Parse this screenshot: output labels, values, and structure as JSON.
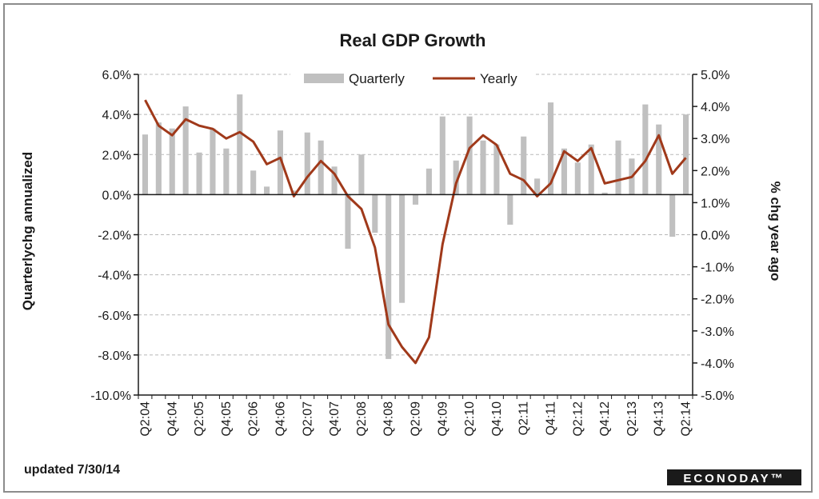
{
  "colors": {
    "bars": "#c0c0c0",
    "line": "#a0391a",
    "grid": "#b8b8b8",
    "axis": "#1a1a1a",
    "logo_bg": "#1a1a1a"
  },
  "footer": {
    "updated": "updated 7/30/14",
    "logo": "ECONODAY™"
  },
  "chart_data": {
    "type": "bar",
    "title": "Real GDP Growth",
    "ylabel": "Quarterlychg annualized",
    "y2label": "% chg year ago",
    "ylim": [
      -10,
      6
    ],
    "y2lim": [
      -5,
      5
    ],
    "yticks": [
      -10,
      -8,
      -6,
      -4,
      -2,
      0,
      2,
      4,
      6
    ],
    "y2ticks": [
      -5,
      -4,
      -3,
      -2,
      -1,
      0,
      1,
      2,
      3,
      4,
      5
    ],
    "ytick_labels": [
      "-10.0%",
      "-8.0%",
      "-6.0%",
      "-4.0%",
      "-2.0%",
      "0.0%",
      "2.0%",
      "4.0%",
      "6.0%"
    ],
    "y2tick_labels": [
      "-5.0%",
      "-4.0%",
      "-3.0%",
      "-2.0%",
      "-1.0%",
      "0.0%",
      "1.0%",
      "2.0%",
      "3.0%",
      "4.0%",
      "5.0%"
    ],
    "grid": true,
    "legend_position": "top",
    "categories": [
      "Q2:04",
      "Q3:04",
      "Q4:04",
      "Q1:05",
      "Q2:05",
      "Q3:05",
      "Q4:05",
      "Q1:06",
      "Q2:06",
      "Q3:06",
      "Q4:06",
      "Q1:07",
      "Q2:07",
      "Q3:07",
      "Q4:07",
      "Q1:08",
      "Q2:08",
      "Q3:08",
      "Q4:08",
      "Q1:09",
      "Q2:09",
      "Q3:09",
      "Q4:09",
      "Q1:10",
      "Q2:10",
      "Q3:10",
      "Q4:10",
      "Q1:11",
      "Q2:11",
      "Q3:11",
      "Q4:11",
      "Q1:12",
      "Q2:12",
      "Q3:12",
      "Q4:12",
      "Q1:13",
      "Q2:13",
      "Q3:13",
      "Q4:13",
      "Q1:14",
      "Q2:14"
    ],
    "xtick_labels": [
      "Q2:04",
      "Q4:04",
      "Q2:05",
      "Q4:05",
      "Q2:06",
      "Q4:06",
      "Q2:07",
      "Q4:07",
      "Q2:08",
      "Q4:08",
      "Q2:09",
      "Q4:09",
      "Q2:10",
      "Q4:10",
      "Q2:11",
      "Q4:11",
      "Q2:12",
      "Q4:12",
      "Q2:13",
      "Q4:13",
      "Q2:14"
    ],
    "series": [
      {
        "name": "Quarterly",
        "type": "bar",
        "axis": "left",
        "values": [
          3.0,
          3.6,
          3.3,
          4.4,
          2.1,
          3.3,
          2.3,
          5.0,
          1.2,
          0.4,
          3.2,
          0.2,
          3.1,
          2.7,
          1.4,
          -2.7,
          2.0,
          -1.9,
          -8.2,
          -5.4,
          -0.5,
          1.3,
          3.9,
          1.7,
          3.9,
          2.7,
          2.5,
          -1.5,
          2.9,
          0.8,
          4.6,
          2.3,
          1.6,
          2.5,
          0.1,
          2.7,
          1.8,
          4.5,
          3.5,
          -2.1,
          4.0
        ]
      },
      {
        "name": "Yearly",
        "type": "line",
        "axis": "right",
        "values": [
          4.2,
          3.4,
          3.1,
          3.6,
          3.4,
          3.3,
          3.0,
          3.2,
          2.9,
          2.2,
          2.4,
          1.2,
          1.8,
          2.3,
          1.9,
          1.2,
          0.8,
          -0.4,
          -2.8,
          -3.5,
          -4.0,
          -3.2,
          -0.3,
          1.6,
          2.7,
          3.1,
          2.8,
          1.9,
          1.7,
          1.2,
          1.6,
          2.6,
          2.3,
          2.7,
          1.6,
          1.7,
          1.8,
          2.3,
          3.1,
          1.9,
          2.4
        ]
      }
    ]
  }
}
